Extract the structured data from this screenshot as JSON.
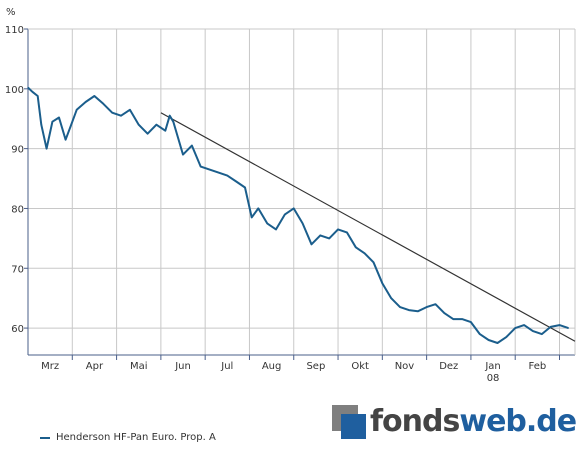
{
  "colors": {
    "series": "#1b5e8c",
    "trendline": "#333333",
    "grid": "#c8c8c8",
    "axis": "#4a5f8a",
    "logo_dark": "#444444",
    "logo_blue": "#1f5f9f"
  },
  "legend": {
    "label": "Henderson HF-Pan Euro. Prop. A"
  },
  "logo": {
    "part1": "fonds",
    "part2": "web.de"
  },
  "chart_data": {
    "type": "line",
    "title": "",
    "xlabel": "",
    "ylabel": "",
    "y_unit": "%",
    "ylim": [
      55.5,
      110
    ],
    "yticks": [
      60,
      70,
      80,
      90,
      100,
      110
    ],
    "xlim": [
      0,
      12.35
    ],
    "grid": true,
    "legend_position": "bottom-left",
    "x_ticks": [
      {
        "label": "Mrz",
        "x": 0.5,
        "pos": 0.5
      },
      {
        "label": "Apr",
        "x": 1.5,
        "pos": 1.5
      },
      {
        "label": "Mai",
        "x": 2.5,
        "pos": 2.5
      },
      {
        "label": "Jun",
        "x": 3.5,
        "pos": 3.5
      },
      {
        "label": "Jul",
        "x": 4.5,
        "pos": 4.5
      },
      {
        "label": "Aug",
        "x": 5.5,
        "pos": 5.5
      },
      {
        "label": "Sep",
        "x": 6.5,
        "pos": 6.5
      },
      {
        "label": "Okt",
        "x": 7.5,
        "pos": 7.5
      },
      {
        "label": "Nov",
        "x": 8.5,
        "pos": 8.5
      },
      {
        "label": "Dez",
        "x": 9.5,
        "pos": 9.5
      },
      {
        "label": "Jan",
        "sub": "08",
        "x": 10.5,
        "pos": 10.5
      },
      {
        "label": "Feb",
        "x": 11.5,
        "pos": 11.5
      }
    ],
    "month_gridlines": [
      1,
      2,
      3,
      4,
      5,
      6,
      7,
      8,
      9,
      10,
      11,
      12
    ],
    "series": [
      {
        "name": "Henderson HF-Pan Euro. Prop. A",
        "x": [
          0.0,
          0.1,
          0.22,
          0.3,
          0.42,
          0.55,
          0.7,
          0.85,
          0.95,
          1.1,
          1.3,
          1.5,
          1.7,
          1.9,
          2.1,
          2.3,
          2.5,
          2.7,
          2.9,
          3.1,
          3.2,
          3.28,
          3.5,
          3.7,
          3.9,
          4.1,
          4.3,
          4.5,
          4.7,
          4.9,
          5.05,
          5.2,
          5.4,
          5.6,
          5.8,
          6.0,
          6.2,
          6.4,
          6.6,
          6.8,
          7.0,
          7.2,
          7.4,
          7.6,
          7.8,
          8.0,
          8.2,
          8.4,
          8.6,
          8.8,
          9.0,
          9.2,
          9.4,
          9.6,
          9.8,
          10.0,
          10.2,
          10.4,
          10.6,
          10.8,
          11.0,
          11.2,
          11.4,
          11.6,
          11.8,
          12.0,
          12.2
        ],
        "values": [
          100.2,
          99.5,
          98.8,
          94.0,
          90.0,
          94.5,
          95.2,
          91.5,
          93.5,
          96.5,
          97.8,
          98.8,
          97.5,
          96.0,
          95.5,
          96.5,
          94.0,
          92.5,
          94.0,
          93.0,
          95.5,
          94.5,
          89.0,
          90.5,
          87.0,
          86.5,
          86.0,
          85.5,
          84.5,
          83.5,
          78.5,
          80.0,
          77.5,
          76.5,
          79.0,
          80.0,
          77.5,
          74.0,
          75.5,
          75.0,
          76.5,
          76.0,
          73.5,
          72.5,
          71.0,
          67.5,
          65.0,
          63.5,
          63.0,
          62.8,
          63.5,
          64.0,
          62.5,
          61.5,
          61.5,
          61.0,
          59.0,
          58.0,
          57.5,
          58.5,
          60.0,
          60.5,
          59.5,
          59.0,
          60.2,
          60.5,
          60.0
        ]
      }
    ],
    "trendline": {
      "x": [
        3.0,
        12.35
      ],
      "values": [
        96.0,
        57.8
      ]
    }
  }
}
